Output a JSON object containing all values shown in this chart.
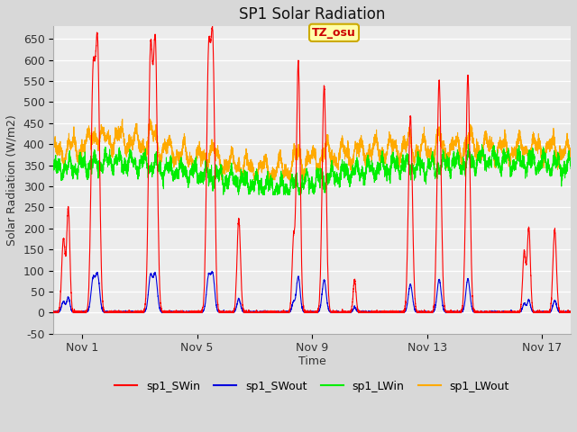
{
  "title": "SP1 Solar Radiation",
  "ylabel": "Solar Radiation (W/m2)",
  "xlabel": "Time",
  "ylim": [
    -50,
    680
  ],
  "xlim": [
    0,
    18
  ],
  "xtick_positions": [
    1,
    5,
    9,
    13,
    17
  ],
  "xtick_labels": [
    "Nov 1",
    "Nov 5",
    "Nov 9",
    "Nov 13",
    "Nov 17"
  ],
  "ytick_positions": [
    -50,
    0,
    50,
    100,
    150,
    200,
    250,
    300,
    350,
    400,
    450,
    500,
    550,
    600,
    650
  ],
  "colors": {
    "SWin": "#ff0000",
    "SWout": "#0000dd",
    "LWin": "#00ee00",
    "LWout": "#ffaa00"
  },
  "fig_bg": "#d8d8d8",
  "plot_bg": "#ececec",
  "annotation_text": "TZ_osu",
  "annotation_bg": "#ffffaa",
  "annotation_border": "#ccaa00",
  "annotation_text_color": "#cc0000",
  "legend_labels": [
    "sp1_SWin",
    "sp1_SWout",
    "sp1_LWin",
    "sp1_LWout"
  ]
}
